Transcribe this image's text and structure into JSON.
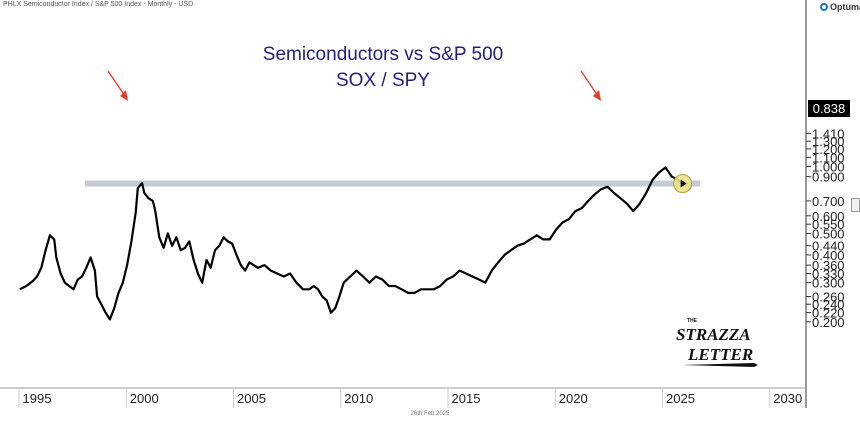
{
  "header": {
    "text": "PHLX Semiconductor Index / S&P 500 Index - Monthly - USD"
  },
  "brand": {
    "name": "Optuma"
  },
  "footer": {
    "date": "26th Feb 2025"
  },
  "logo": {
    "line1": "THE",
    "line2": "STRAZZA",
    "line3": "LETTER"
  },
  "chart_data": {
    "type": "line",
    "title": "Semiconductors vs S&P 500",
    "subtitle": "SOX / SPY",
    "xlabel": "",
    "ylabel": "",
    "y_scale": "log",
    "xlim": [
      1994.2,
      2030.0
    ],
    "ylim": [
      0.18,
      1.43
    ],
    "x_ticks": [
      1995,
      2000,
      2005,
      2010,
      2015,
      2020,
      2025,
      2030
    ],
    "x_tick_labels": [
      "1995",
      "2000",
      "2005",
      "2010",
      "2015",
      "2020",
      "2025",
      "2030"
    ],
    "y_ticks": [
      0.2,
      0.22,
      0.24,
      0.26,
      0.3,
      0.33,
      0.36,
      0.4,
      0.44,
      0.5,
      0.55,
      0.6,
      0.7,
      0.9,
      1.0,
      1.1,
      1.2,
      1.3,
      1.41
    ],
    "y_tick_labels": [
      "0.200",
      "0.220",
      "0.240",
      "0.260",
      "0.300",
      "0.330",
      "0.360",
      "0.400",
      "0.440",
      "0.500",
      "0.550",
      "0.600",
      "0.700",
      "0.900",
      "1.000",
      "1.100",
      "1.200",
      "1.300",
      "1.410"
    ],
    "last_value": 0.838,
    "last_value_label": "0.838",
    "resistance_level": 0.838,
    "grid": false,
    "series": [
      {
        "x": [
          1994.2,
          1994.5,
          1994.8,
          1995.0,
          1995.2,
          1995.4,
          1995.6,
          1995.8,
          1995.9,
          1996.1,
          1996.3,
          1996.5,
          1996.7,
          1996.9,
          1997.1,
          1997.3,
          1997.5,
          1997.7,
          1997.8,
          1998.0,
          1998.2,
          1998.4,
          1998.6,
          1998.8,
          1999.0,
          1999.2,
          1999.4,
          1999.6,
          1999.7,
          1999.9,
          2000.0,
          2000.2,
          2000.4,
          2000.5,
          2000.7,
          2000.9,
          2001.1,
          2001.3,
          2001.5,
          2001.7,
          2001.9,
          2002.1,
          2002.3,
          2002.5,
          2002.7,
          2002.9,
          2003.1,
          2003.3,
          2003.5,
          2003.7,
          2003.9,
          2004.1,
          2004.3,
          2004.5,
          2004.7,
          2004.9,
          2005.1,
          2005.3,
          2005.6,
          2005.9,
          2006.2,
          2006.5,
          2006.8,
          2007.1,
          2007.4,
          2007.7,
          2007.9,
          2008.1,
          2008.3,
          2008.5,
          2008.7,
          2008.9,
          2009.1,
          2009.3,
          2009.6,
          2009.9,
          2010.2,
          2010.5,
          2010.8,
          2011.1,
          2011.4,
          2011.7,
          2012.0,
          2012.3,
          2012.6,
          2012.9,
          2013.2,
          2013.5,
          2013.8,
          2014.1,
          2014.4,
          2014.7,
          2015.0,
          2015.3,
          2015.6,
          2015.9,
          2016.2,
          2016.5,
          2016.8,
          2017.1,
          2017.4,
          2017.7,
          2018.0,
          2018.3,
          2018.6,
          2018.9,
          2019.2,
          2019.5,
          2019.8,
          2020.1,
          2020.4,
          2020.7,
          2021.0,
          2021.3,
          2021.6,
          2021.9,
          2022.2,
          2022.5,
          2022.8,
          2023.1,
          2023.4,
          2023.7,
          2024.0,
          2024.3,
          2024.6,
          2024.9,
          2025.1
        ],
        "y": [
          0.28,
          0.29,
          0.305,
          0.32,
          0.35,
          0.42,
          0.49,
          0.47,
          0.39,
          0.33,
          0.3,
          0.29,
          0.28,
          0.31,
          0.32,
          0.35,
          0.39,
          0.34,
          0.26,
          0.24,
          0.22,
          0.205,
          0.23,
          0.27,
          0.3,
          0.36,
          0.46,
          0.62,
          0.8,
          0.84,
          0.76,
          0.72,
          0.7,
          0.64,
          0.48,
          0.43,
          0.5,
          0.44,
          0.48,
          0.42,
          0.43,
          0.46,
          0.38,
          0.33,
          0.3,
          0.38,
          0.35,
          0.42,
          0.44,
          0.48,
          0.46,
          0.45,
          0.4,
          0.36,
          0.34,
          0.37,
          0.36,
          0.35,
          0.36,
          0.34,
          0.33,
          0.32,
          0.33,
          0.3,
          0.28,
          0.28,
          0.29,
          0.28,
          0.26,
          0.25,
          0.22,
          0.23,
          0.26,
          0.3,
          0.32,
          0.34,
          0.32,
          0.3,
          0.32,
          0.31,
          0.29,
          0.29,
          0.28,
          0.27,
          0.27,
          0.28,
          0.28,
          0.28,
          0.29,
          0.31,
          0.32,
          0.34,
          0.33,
          0.32,
          0.31,
          0.3,
          0.34,
          0.37,
          0.4,
          0.42,
          0.44,
          0.45,
          0.47,
          0.49,
          0.47,
          0.47,
          0.52,
          0.56,
          0.58,
          0.63,
          0.65,
          0.7,
          0.75,
          0.79,
          0.81,
          0.76,
          0.72,
          0.68,
          0.63,
          0.68,
          0.76,
          0.87,
          0.94,
          0.99,
          0.9,
          0.87,
          0.838
        ]
      }
    ]
  },
  "colors": {
    "line": "#000000",
    "title": "#1f1f7a",
    "resistance": "#c6cad4",
    "arrow": "#e23b2a",
    "label_bg": "#000000",
    "marker_fill": "#e9e38d"
  }
}
